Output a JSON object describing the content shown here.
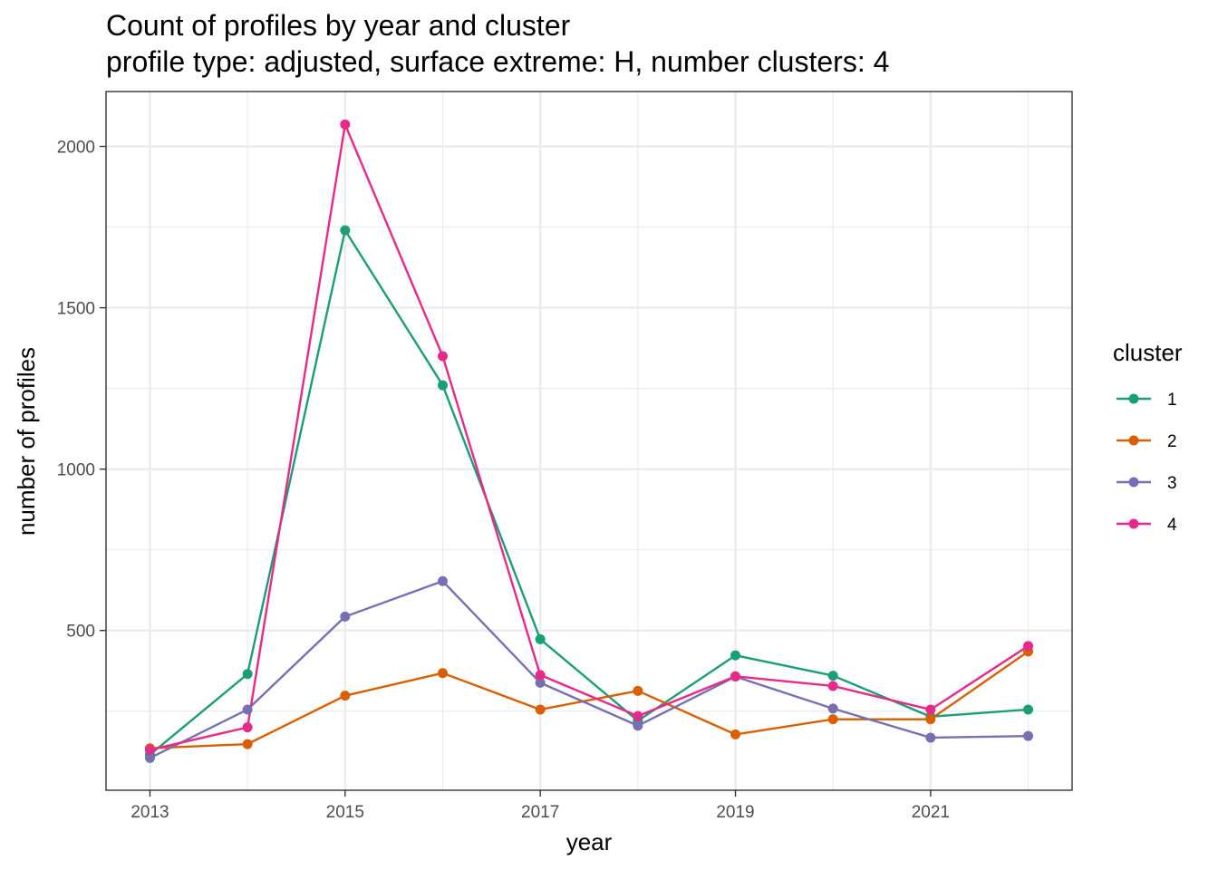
{
  "chart_data": {
    "type": "line",
    "title": "Count of profiles by year and cluster",
    "subtitle": "profile type: adjusted, surface extreme: H, number clusters: 4",
    "xlabel": "year",
    "ylabel": "number of profiles",
    "x": [
      2013,
      2014,
      2015,
      2016,
      2017,
      2018,
      2019,
      2020,
      2021,
      2022
    ],
    "xticks": [
      2013,
      2015,
      2017,
      2019,
      2021
    ],
    "yticks": [
      500,
      1000,
      1500,
      2000
    ],
    "xlim": [
      2012.55,
      2022.45
    ],
    "ylim": [
      5,
      2170
    ],
    "grid": true,
    "legend": {
      "title": "cluster",
      "placement": "right"
    },
    "series": [
      {
        "name": "1",
        "color": "#1B9E77",
        "values": [
          115,
          365,
          1740,
          1260,
          473,
          220,
          423,
          360,
          233,
          255
        ]
      },
      {
        "name": "2",
        "color": "#D95F02",
        "values": [
          135,
          148,
          298,
          368,
          255,
          313,
          178,
          225,
          225,
          435
        ]
      },
      {
        "name": "3",
        "color": "#7570B3",
        "values": [
          105,
          255,
          543,
          653,
          338,
          205,
          357,
          258,
          168,
          173
        ]
      },
      {
        "name": "4",
        "color": "#E7298A",
        "values": [
          130,
          200,
          2068,
          1350,
          362,
          235,
          358,
          328,
          255,
          452
        ]
      }
    ]
  }
}
